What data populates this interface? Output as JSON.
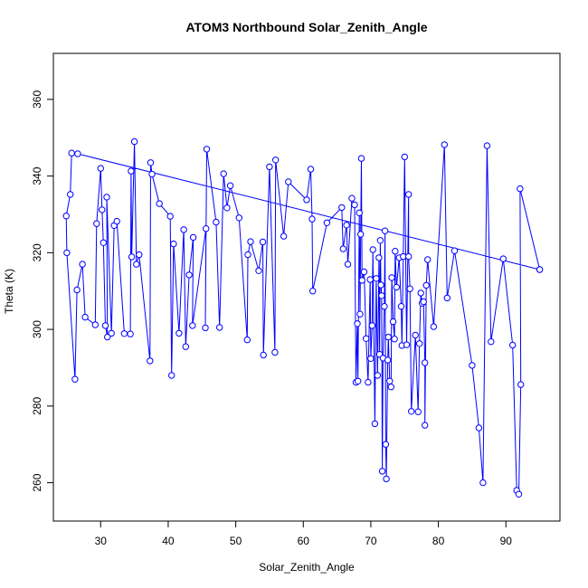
{
  "chart_data": {
    "type": "line",
    "title": "ATOM3 Northbound Solar_Zenith_Angle",
    "xlabel": "Solar_Zenith_Angle",
    "ylabel": "Theta (K)",
    "xlim": [
      23,
      98
    ],
    "ylim": [
      250,
      372
    ],
    "xticks": [
      30,
      40,
      50,
      60,
      70,
      80,
      90
    ],
    "yticks": [
      260,
      280,
      300,
      320,
      340,
      360
    ],
    "grid": false,
    "series": [
      {
        "color": "#0000ff",
        "marker": "open-circle",
        "points": [
          [
            95.0,
            315.6
          ],
          [
            26.6,
            345.8
          ],
          [
            25.7,
            346.0
          ],
          [
            25.5,
            335.2
          ],
          [
            24.9,
            329.6
          ],
          [
            25.0,
            320.0
          ],
          [
            26.2,
            287.0
          ],
          [
            26.5,
            310.3
          ],
          [
            27.3,
            317.0
          ],
          [
            27.7,
            303.2
          ],
          [
            29.2,
            301.2
          ],
          [
            29.4,
            327.6
          ],
          [
            30.0,
            342.0
          ],
          [
            30.2,
            331.2
          ],
          [
            30.4,
            322.6
          ],
          [
            30.7,
            301.0
          ],
          [
            31.0,
            298.0
          ],
          [
            30.9,
            334.5
          ],
          [
            31.6,
            299.0
          ],
          [
            32.0,
            327.1
          ],
          [
            32.4,
            328.2
          ],
          [
            33.5,
            298.9
          ],
          [
            34.4,
            298.8
          ],
          [
            34.5,
            341.3
          ],
          [
            34.6,
            318.9
          ],
          [
            35.0,
            349.0
          ],
          [
            35.3,
            317.0
          ],
          [
            35.7,
            319.5
          ],
          [
            37.3,
            291.8
          ],
          [
            37.4,
            343.5
          ],
          [
            37.6,
            340.5
          ],
          [
            38.7,
            332.8
          ],
          [
            40.3,
            329.5
          ],
          [
            40.5,
            288.0
          ],
          [
            40.8,
            322.3
          ],
          [
            41.6,
            299.0
          ],
          [
            42.3,
            326.0
          ],
          [
            42.6,
            295.5
          ],
          [
            43.1,
            314.2
          ],
          [
            43.7,
            324.0
          ],
          [
            43.6,
            301.0
          ],
          [
            45.6,
            326.3
          ],
          [
            45.5,
            300.4
          ],
          [
            45.7,
            347.0
          ],
          [
            47.1,
            328.0
          ],
          [
            47.6,
            300.5
          ],
          [
            48.2,
            340.6
          ],
          [
            48.7,
            331.7
          ],
          [
            49.2,
            337.5
          ],
          [
            50.5,
            329.1
          ],
          [
            51.7,
            297.3
          ],
          [
            51.8,
            319.5
          ],
          [
            52.2,
            322.9
          ],
          [
            53.4,
            315.3
          ],
          [
            54.0,
            322.8
          ],
          [
            54.1,
            293.3
          ],
          [
            55.0,
            342.4
          ],
          [
            55.8,
            294.0
          ],
          [
            55.9,
            344.2
          ],
          [
            57.1,
            324.3
          ],
          [
            57.8,
            338.5
          ],
          [
            60.5,
            333.8
          ],
          [
            61.1,
            341.8
          ],
          [
            61.3,
            328.8
          ],
          [
            61.4,
            310.0
          ],
          [
            63.5,
            327.8
          ],
          [
            65.7,
            331.8
          ],
          [
            65.9,
            321.0
          ],
          [
            66.4,
            327.2
          ],
          [
            66.6,
            317.0
          ],
          [
            67.2,
            334.2
          ],
          [
            67.6,
            332.5
          ],
          [
            67.8,
            286.2
          ],
          [
            68.0,
            301.5
          ],
          [
            68.1,
            286.5
          ],
          [
            68.3,
            330.4
          ],
          [
            68.4,
            304.0
          ],
          [
            68.5,
            324.8
          ],
          [
            68.6,
            344.6
          ],
          [
            68.7,
            312.8
          ],
          [
            69.0,
            315.0
          ],
          [
            69.3,
            297.6
          ],
          [
            69.6,
            286.2
          ],
          [
            69.9,
            313.0
          ],
          [
            70.0,
            292.4
          ],
          [
            70.2,
            301.0
          ],
          [
            70.3,
            320.8
          ],
          [
            70.6,
            275.4
          ],
          [
            70.8,
            313.3
          ],
          [
            71.0,
            288.0
          ],
          [
            71.2,
            318.7
          ],
          [
            71.3,
            293.5
          ],
          [
            71.4,
            323.2
          ],
          [
            71.5,
            311.6
          ],
          [
            71.6,
            308.8
          ],
          [
            71.7,
            263.0
          ],
          [
            71.8,
            292.5
          ],
          [
            72.0,
            306.0
          ],
          [
            72.1,
            325.7
          ],
          [
            72.2,
            270.0
          ],
          [
            72.3,
            261.0
          ],
          [
            72.5,
            292.0
          ],
          [
            72.6,
            298.0
          ],
          [
            72.8,
            286.5
          ],
          [
            73.0,
            285.0
          ],
          [
            73.1,
            313.5
          ],
          [
            73.3,
            302.0
          ],
          [
            73.5,
            297.5
          ],
          [
            73.6,
            320.4
          ],
          [
            73.8,
            311.0
          ],
          [
            74.2,
            318.7
          ],
          [
            74.5,
            306.0
          ],
          [
            74.6,
            295.8
          ],
          [
            74.8,
            319.0
          ],
          [
            75.0,
            345.0
          ],
          [
            75.3,
            296.0
          ],
          [
            75.6,
            335.2
          ],
          [
            75.6,
            319.0
          ],
          [
            75.8,
            310.6
          ],
          [
            76.0,
            278.6
          ],
          [
            76.6,
            298.5
          ],
          [
            77.0,
            278.5
          ],
          [
            77.2,
            296.3
          ],
          [
            77.4,
            309.5
          ],
          [
            77.6,
            306.8
          ],
          [
            77.8,
            307.2
          ],
          [
            78.0,
            291.3
          ],
          [
            78.0,
            275.0
          ],
          [
            78.2,
            311.5
          ],
          [
            78.4,
            318.2
          ],
          [
            79.3,
            300.7
          ],
          [
            80.9,
            348.2
          ],
          [
            81.3,
            308.2
          ],
          [
            82.4,
            320.5
          ],
          [
            85.0,
            290.6
          ],
          [
            86.0,
            274.3
          ],
          [
            86.6,
            260.0
          ],
          [
            87.2,
            347.9
          ],
          [
            87.8,
            296.8
          ],
          [
            89.6,
            318.4
          ],
          [
            91.0,
            295.9
          ],
          [
            91.6,
            258.0
          ],
          [
            91.9,
            257.0
          ],
          [
            92.2,
            285.6
          ],
          [
            92.1,
            336.7
          ],
          [
            95.0,
            315.6
          ]
        ]
      }
    ]
  }
}
